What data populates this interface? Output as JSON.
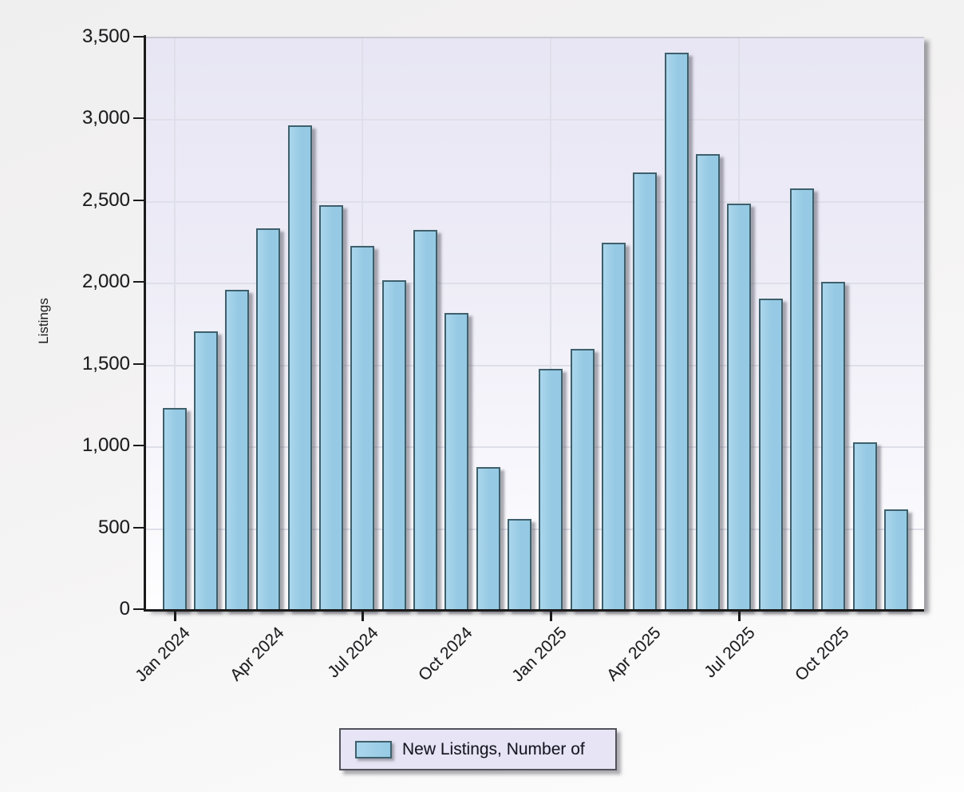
{
  "chart_data": {
    "type": "bar",
    "title": "",
    "xlabel": "",
    "ylabel": "Listings",
    "ylim": [
      0,
      3500
    ],
    "ytick_step": 500,
    "ytick_labels": [
      "0",
      "500",
      "1,000",
      "1,500",
      "2,000",
      "2,500",
      "3,000",
      "3,500"
    ],
    "categories": [
      "Jan 2024",
      "Feb 2024",
      "Mar 2024",
      "Apr 2024",
      "May 2024",
      "Jun 2024",
      "Jul 2024",
      "Aug 2024",
      "Sep 2024",
      "Oct 2024",
      "Nov 2024",
      "Dec 2024",
      "Jan 2025",
      "Feb 2025",
      "Mar 2025",
      "Apr 2025",
      "May 2025",
      "Jun 2025",
      "Jul 2025",
      "Aug 2025",
      "Sep 2025",
      "Oct 2025",
      "Nov 2025",
      "Dec 2025"
    ],
    "values": [
      1240,
      1710,
      1960,
      2340,
      2970,
      2480,
      2230,
      2020,
      2330,
      1820,
      880,
      560,
      1480,
      1600,
      2250,
      2680,
      3410,
      2790,
      2490,
      1910,
      2580,
      2010,
      1030,
      620
    ],
    "series_name": "New Listings, Number of",
    "visible_x_labels": [
      "Jan 2024",
      "Apr 2024",
      "Jul 2024",
      "Oct 2024",
      "Jan 2025",
      "Apr 2025",
      "Jul 2025",
      "Oct 2025"
    ],
    "x_label_month_indices": [
      0,
      3,
      6,
      9,
      12,
      15,
      18,
      21
    ],
    "x_tick_month_indices": [
      0,
      6,
      12,
      18
    ],
    "x_gridline_month_indices": [
      0,
      6,
      12,
      18
    ],
    "grid": true,
    "legend_position": "bottom"
  },
  "legend": {
    "label": "New Listings, Number of"
  },
  "colors": {
    "bar_fill": "#96cae4",
    "bar_fill_light": "#aad6ec",
    "bar_border": "#3e606c",
    "plot_bg_top": "#e8e6f4",
    "plot_bg_bottom": "#fefeff",
    "gridline": "#dfdfe9",
    "axis": "#1b1b1b",
    "text": "#1b1b1b",
    "legend_bg": "#e7e5f5",
    "legend_border": "#52525c",
    "page_top": "#f0efef",
    "page_bottom": "#fdfdfd"
  }
}
